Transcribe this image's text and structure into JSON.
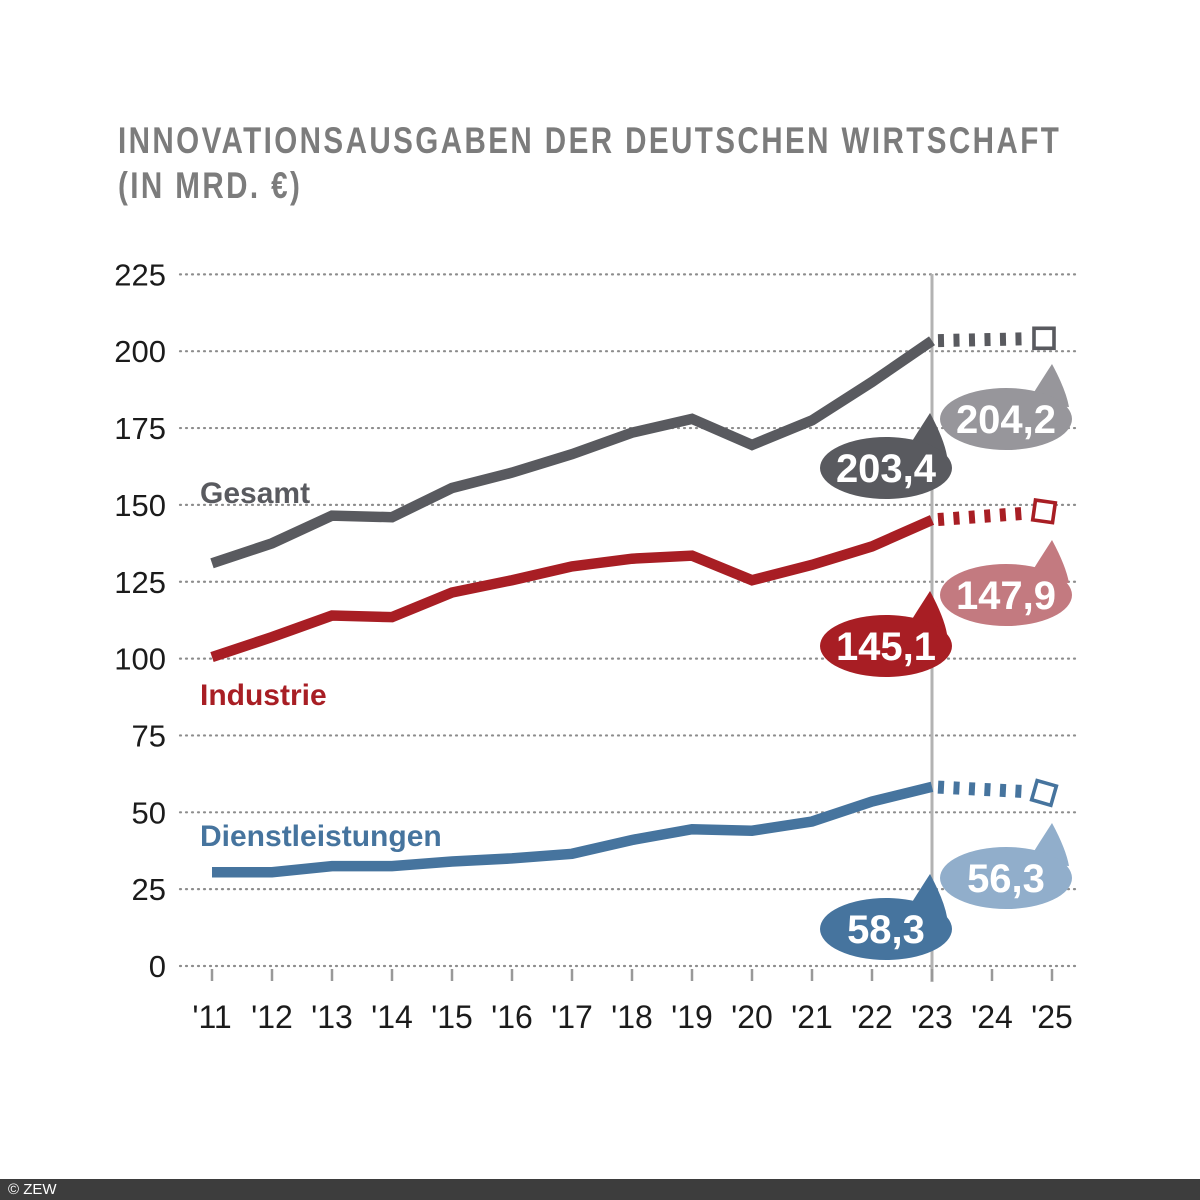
{
  "title": {
    "line1": "INNOVATIONSAUSGABEN DER DEUTSCHEN WIRTSCHAFT",
    "line2": "(IN MRD. €)"
  },
  "footer": {
    "copyright": "© ZEW"
  },
  "colors": {
    "grid": "#8d8d8d",
    "axis_text": "#1b1b1b",
    "tick": "#999999",
    "title_text": "#7c7c7c",
    "reference_line": "#b3b3b3",
    "footer_bg": "#3d3d3d",
    "footer_text": "#ffffff",
    "background": "#ffffff",
    "bubble_text": "#ffffff"
  },
  "chart_data": {
    "type": "line",
    "title": "Innovationsausgaben der deutschen Wirtschaft (in Mrd. €)",
    "x_labels": [
      "'11",
      "'12",
      "'13",
      "'14",
      "'15",
      "'16",
      "'17",
      "'18",
      "'19",
      "'20",
      "'21",
      "'22",
      "'23",
      "'24",
      "'25"
    ],
    "ylim": [
      0,
      225
    ],
    "ytick_step": 25,
    "grid": true,
    "legend_position": "inline-labels",
    "reference_year_index": 12,
    "series": [
      {
        "name": "Gesamt",
        "color": "#595a5f",
        "color_light": "#97969b",
        "values": [
          131,
          137.5,
          146.5,
          146,
          155.5,
          160.5,
          166.5,
          173.5,
          178,
          169.5,
          177.5,
          190,
          203.4
        ],
        "projection": [
          203.4,
          203.8,
          204.2
        ],
        "callout_2023": "203,4",
        "callout_2025": "204,2"
      },
      {
        "name": "Industrie",
        "color": "#a81e24",
        "color_light": "#c37a80",
        "values": [
          100.5,
          107,
          114,
          113.5,
          121.5,
          125.5,
          130,
          132.5,
          133.5,
          125.5,
          130.5,
          136.5,
          145.1
        ],
        "projection": [
          145.1,
          146.5,
          147.9
        ],
        "callout_2023": "145,1",
        "callout_2025": "147,9"
      },
      {
        "name": "Dienstleistungen",
        "color": "#46749e",
        "color_light": "#91aecb",
        "values": [
          30.5,
          30.5,
          32.5,
          32.5,
          34,
          35,
          36.5,
          41,
          44.5,
          44,
          47,
          53.5,
          58.3
        ],
        "projection": [
          58.3,
          57.3,
          56.3
        ],
        "callout_2023": "58,3",
        "callout_2025": "56,3"
      }
    ]
  }
}
